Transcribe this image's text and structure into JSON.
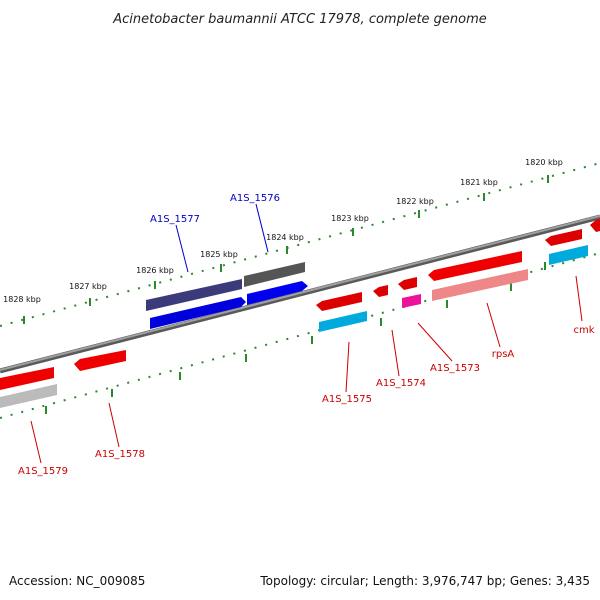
{
  "title": "Acinetobacter baumannii ATCC 17978, complete genome",
  "footer": {
    "accession": "Accession: NC_009085",
    "summary": "Topology: circular; Length: 3,976,747 bp; Genes: 3,435"
  },
  "colors": {
    "backbone": "#7a7a7a",
    "tick": "#2a8a2a",
    "label_forward": "#0000cc",
    "label_reverse": "#cc0000"
  },
  "ticks": [
    {
      "label": "1820 kbp"
    },
    {
      "label": "1821 kbp"
    },
    {
      "label": "1822 kbp"
    },
    {
      "label": "1823 kbp"
    },
    {
      "label": "1824 kbp"
    },
    {
      "label": "1825 kbp"
    },
    {
      "label": "1826 kbp"
    },
    {
      "label": "1827 kbp"
    },
    {
      "label": "1828 kbp"
    }
  ],
  "genes": [
    {
      "name": "A1S_1577",
      "strand": "forward"
    },
    {
      "name": "A1S_1576",
      "strand": "forward"
    },
    {
      "name": "A1S_1575",
      "strand": "reverse"
    },
    {
      "name": "A1S_1574",
      "strand": "reverse"
    },
    {
      "name": "A1S_1573",
      "strand": "reverse"
    },
    {
      "name": "rpsA",
      "strand": "reverse"
    },
    {
      "name": "cmk",
      "strand": "reverse"
    },
    {
      "name": "A1S_1578",
      "strand": "reverse"
    },
    {
      "name": "A1S_1579",
      "strand": "reverse"
    }
  ]
}
